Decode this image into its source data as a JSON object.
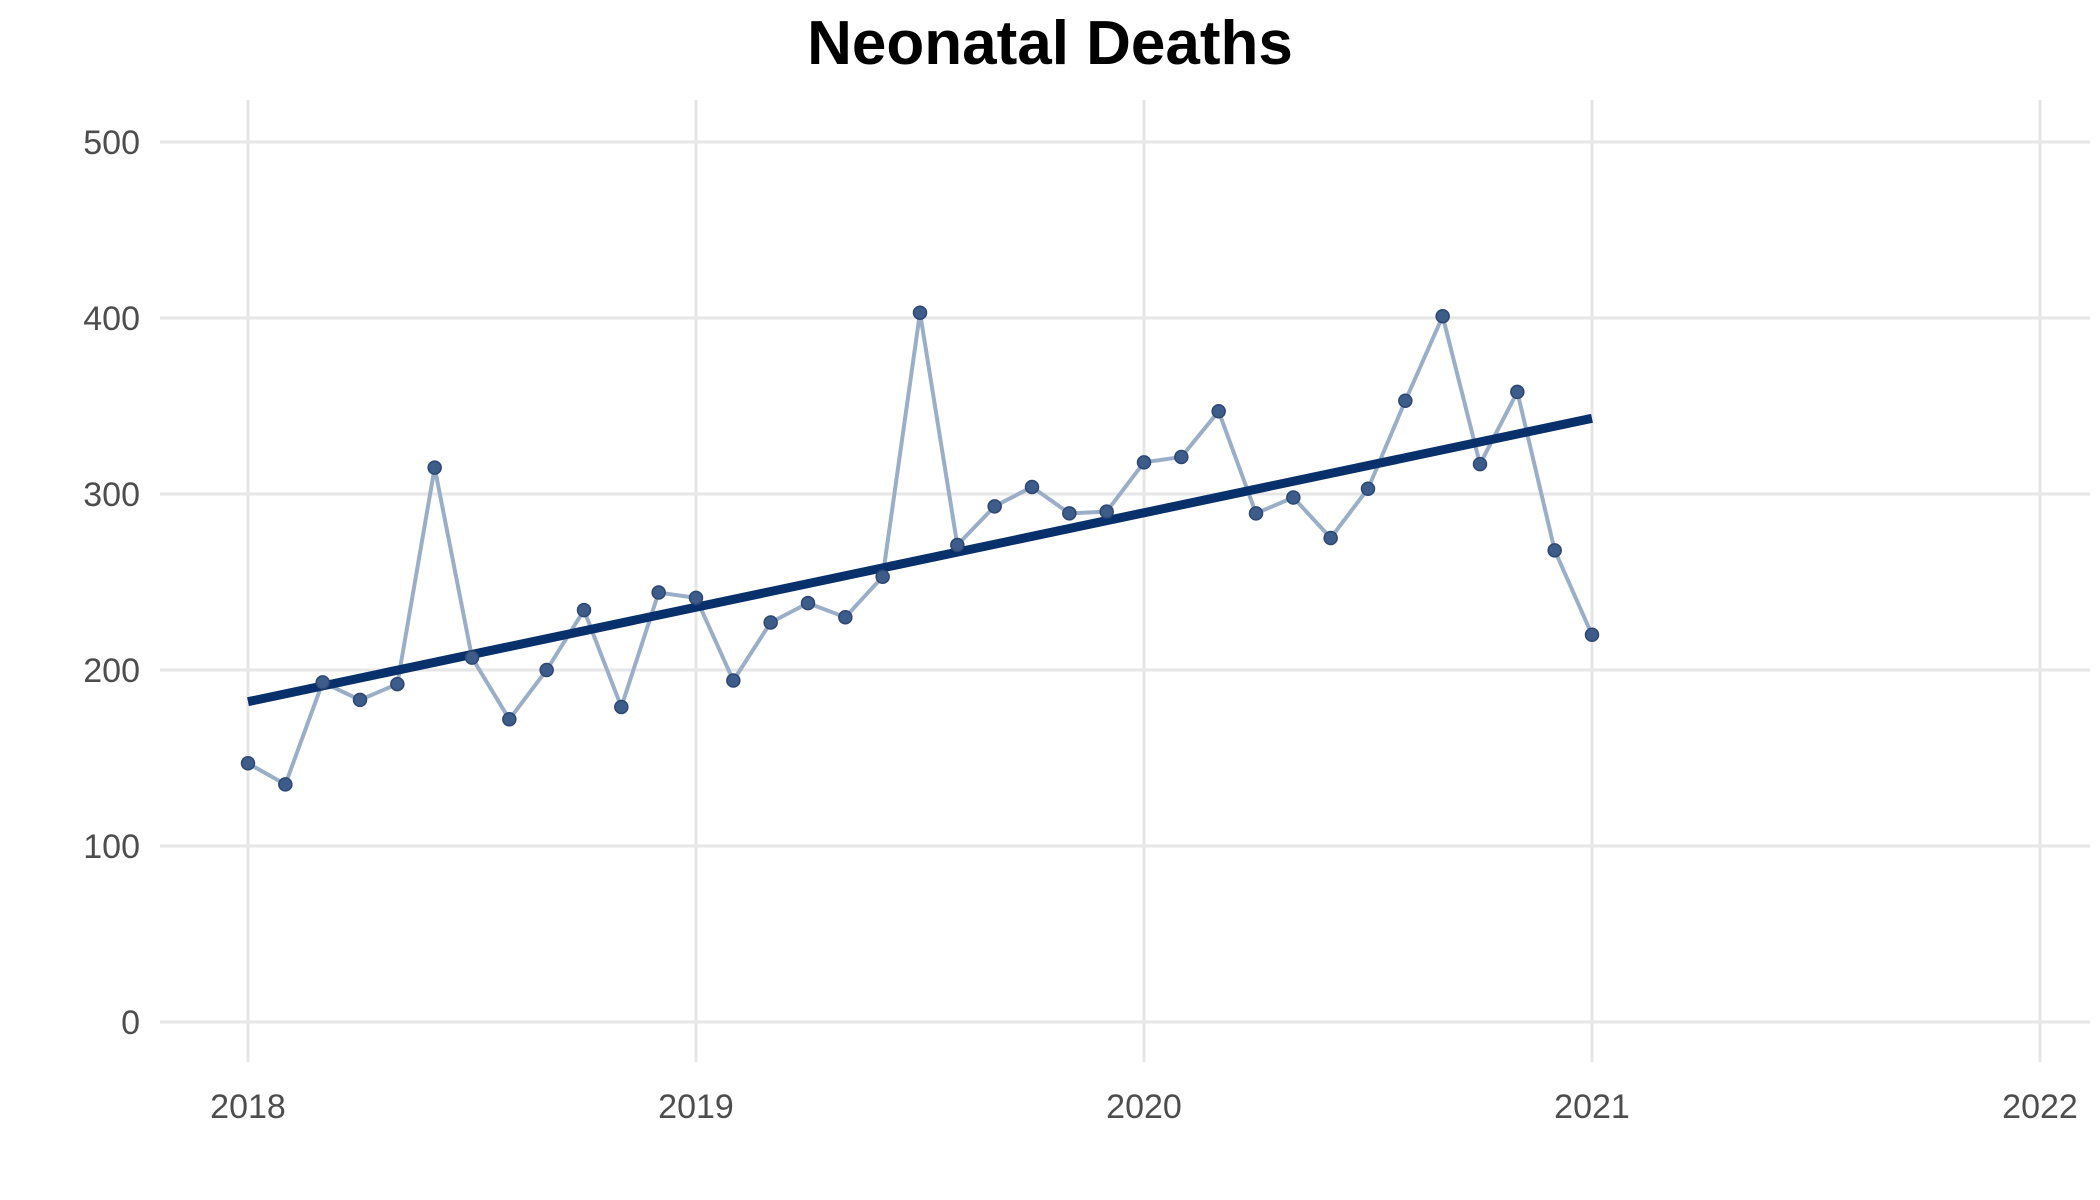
{
  "chart_data": {
    "type": "line",
    "title": "Neonatal Deaths",
    "xlabel": "",
    "ylabel": "",
    "xlim": [
      "2018-01",
      "2022-01"
    ],
    "ylim": [
      0,
      500
    ],
    "x_ticks": [
      "2018",
      "2019",
      "2020",
      "2021",
      "2022"
    ],
    "y_ticks": [
      "0",
      "100",
      "200",
      "300",
      "400",
      "500"
    ],
    "grid": true,
    "legend": "none",
    "series": [
      {
        "color": "#9aaec8",
        "point_color": "#3e5c8a",
        "x": [
          "2018-01",
          "2018-02",
          "2018-03",
          "2018-04",
          "2018-05",
          "2018-06",
          "2018-07",
          "2018-08",
          "2018-09",
          "2018-10",
          "2018-11",
          "2018-12",
          "2019-01",
          "2019-02",
          "2019-03",
          "2019-04",
          "2019-05",
          "2019-06",
          "2019-07",
          "2019-08",
          "2019-09",
          "2019-10",
          "2019-11",
          "2019-12",
          "2020-01",
          "2020-02",
          "2020-03",
          "2020-04",
          "2020-05",
          "2020-06",
          "2020-07",
          "2020-08",
          "2020-09",
          "2020-10",
          "2020-11",
          "2020-12",
          "2021-01"
        ],
        "values": [
          147,
          135,
          193,
          183,
          192,
          315,
          207,
          172,
          200,
          234,
          179,
          244,
          241,
          194,
          227,
          238,
          230,
          253,
          403,
          271,
          293,
          304,
          289,
          290,
          318,
          321,
          347,
          289,
          298,
          275,
          303,
          353,
          401,
          317,
          358,
          268,
          220
        ]
      }
    ],
    "trend_line": {
      "color": "#08306b",
      "x": [
        "2018-01",
        "2021-01"
      ],
      "values": [
        182,
        343
      ]
    }
  }
}
